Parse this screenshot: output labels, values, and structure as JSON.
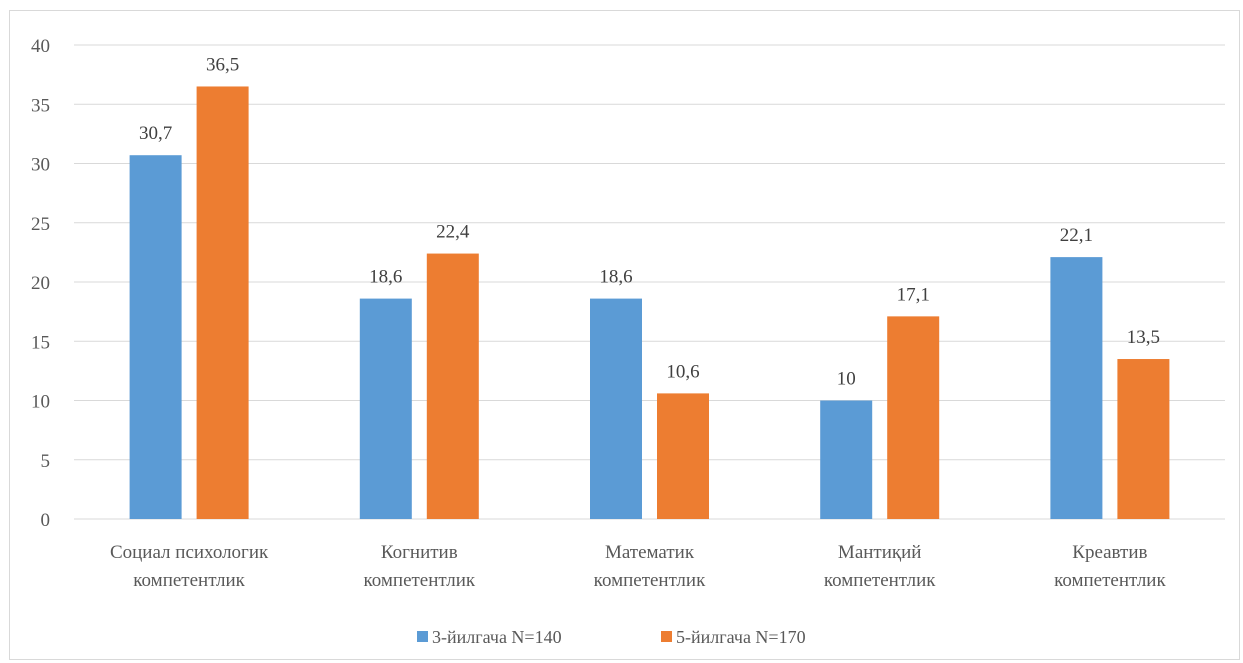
{
  "chart_data": {
    "type": "bar",
    "categories": [
      [
        "Социал психологик",
        "компетентлик"
      ],
      [
        "Когнитив",
        "компетентлик"
      ],
      [
        "Математик",
        "компетентлик"
      ],
      [
        "Мантиқий",
        "компетентлик"
      ],
      [
        "Креавтив",
        "компетентлик"
      ]
    ],
    "series": [
      {
        "name": "3-йилгача N=140",
        "color": "#5b9bd5",
        "values": [
          30.7,
          18.6,
          18.6,
          10,
          22.1
        ],
        "labels": [
          "30,7",
          "18,6",
          "18,6",
          "10",
          "22,1"
        ]
      },
      {
        "name": "5-йилгача N=170",
        "color": "#ed7d31",
        "values": [
          36.5,
          22.4,
          10.6,
          17.1,
          13.5
        ],
        "labels": [
          "36,5",
          "22,4",
          "10,6",
          "17,1",
          "13,5"
        ]
      }
    ],
    "ylim": [
      0,
      40
    ],
    "yticks": [
      0,
      5,
      10,
      15,
      20,
      25,
      30,
      35,
      40
    ],
    "grid": true,
    "legend": "bottom"
  }
}
